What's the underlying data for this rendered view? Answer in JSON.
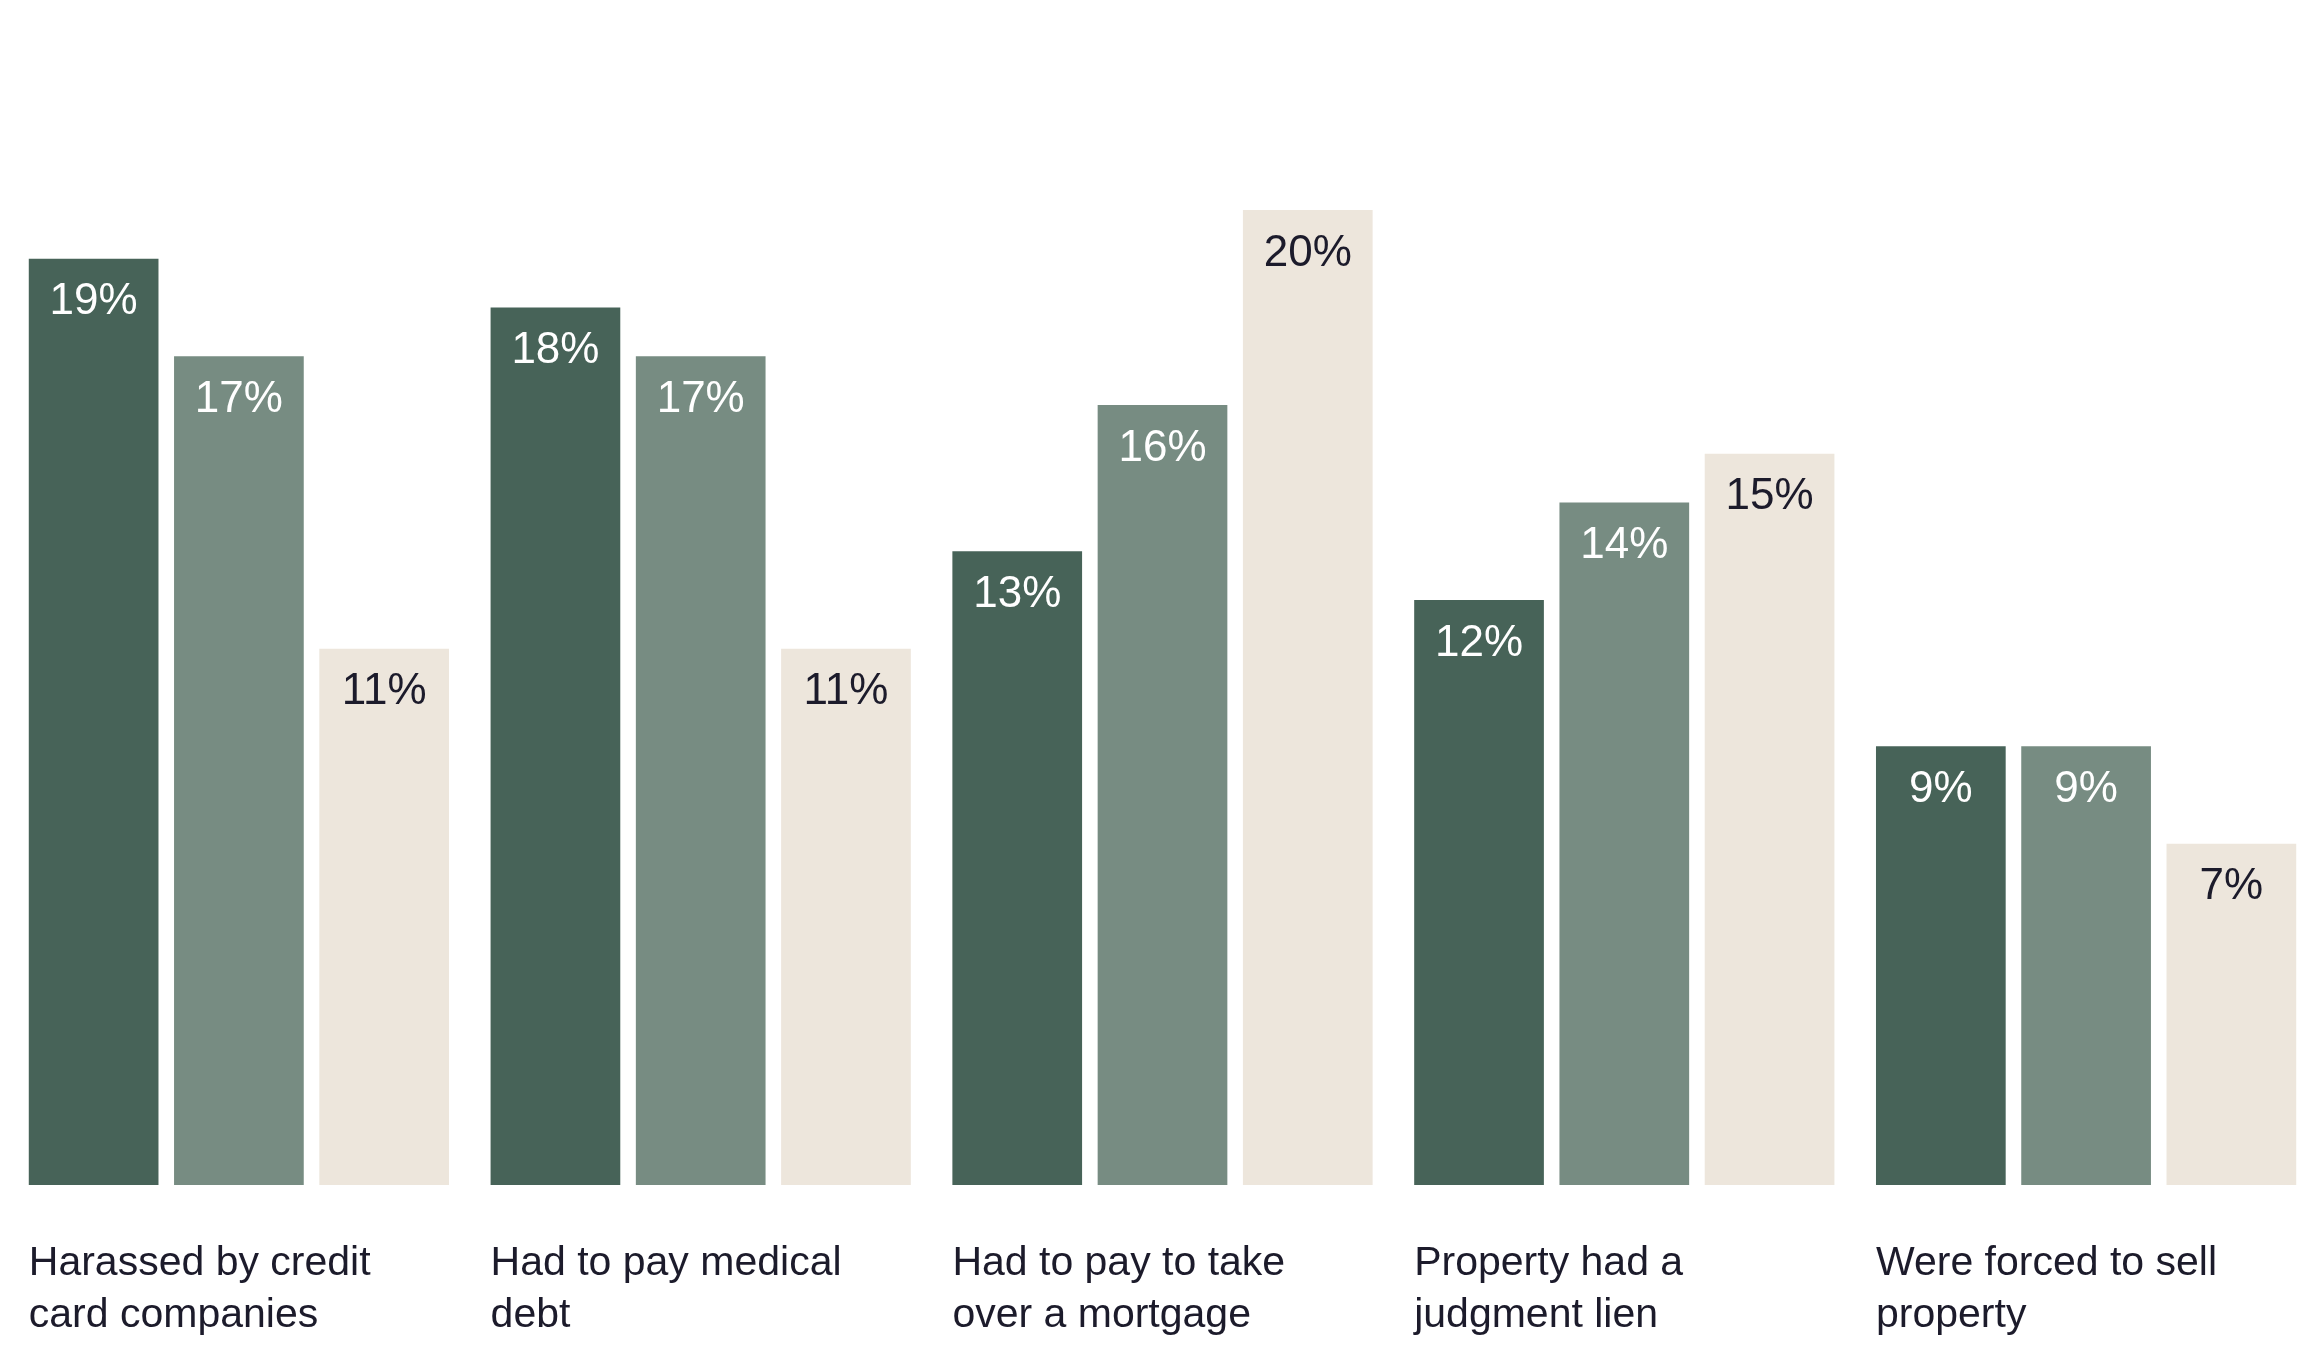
{
  "chart_data": {
    "type": "bar",
    "categories": [
      "Harassed by credit card companies",
      "Had to pay medical debt",
      "Had to pay to take over a mortgage",
      "Property had a judgment lien",
      "Were forced to sell property"
    ],
    "series": [
      {
        "color": "#476358",
        "values": [
          19,
          18,
          13,
          12,
          9
        ],
        "value_labels": [
          "19%",
          "18%",
          "13%",
          "12%",
          "9%"
        ]
      },
      {
        "color": "#778c82",
        "values": [
          17,
          17,
          16,
          14,
          9
        ],
        "value_labels": [
          "17%",
          "17%",
          "16%",
          "14%",
          "9%"
        ]
      },
      {
        "color": "#ede6dc",
        "values": [
          11,
          11,
          20,
          15,
          7
        ],
        "value_labels": [
          "11%",
          "11%",
          "20%",
          "15%",
          "7%"
        ]
      }
    ],
    "stacked": false
  }
}
